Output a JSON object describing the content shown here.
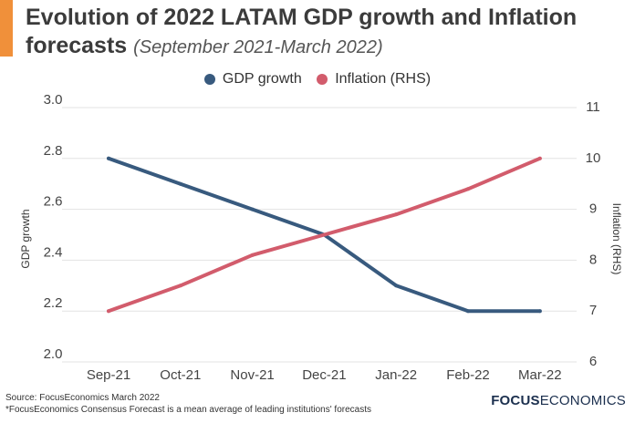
{
  "header": {
    "title": "Evolution of 2022 LATAM GDP growth and Inflation forecasts",
    "subtitle": "(September 2021-March 2022)",
    "accent_color": "#f0903a"
  },
  "chart_data": {
    "type": "line",
    "categories": [
      "Sep-21",
      "Oct-21",
      "Nov-21",
      "Dec-21",
      "Jan-22",
      "Feb-22",
      "Mar-22"
    ],
    "series": [
      {
        "name": "GDP growth",
        "axis": "left",
        "color": "#385a7e",
        "values": [
          2.8,
          2.7,
          2.6,
          2.5,
          2.3,
          2.2,
          2.2
        ]
      },
      {
        "name": "Inflation (RHS)",
        "axis": "right",
        "color": "#d25c6c",
        "values": [
          7.0,
          7.5,
          8.1,
          8.5,
          8.9,
          9.4,
          10.0
        ]
      }
    ],
    "ylabel": "GDP growth",
    "ylabel_right": "Inflation (RHS)",
    "ylim": [
      2.0,
      3.0
    ],
    "ylim_right": [
      6,
      11
    ],
    "yticks": [
      "3.0",
      "2.8",
      "2.6",
      "2.4",
      "2.2",
      "2.0"
    ],
    "yticks_right": [
      "11",
      "10",
      "9",
      "8",
      "7",
      "6"
    ],
    "grid": true,
    "legend_position": "top"
  },
  "footer": {
    "source": "Source: FocusEconomics March 2022",
    "note": "*FocusEconomics Consensus Forecast is a mean average of leading institutions' forecasts",
    "logo_bold": "FOCUS",
    "logo_light": "ECONOMICS"
  }
}
